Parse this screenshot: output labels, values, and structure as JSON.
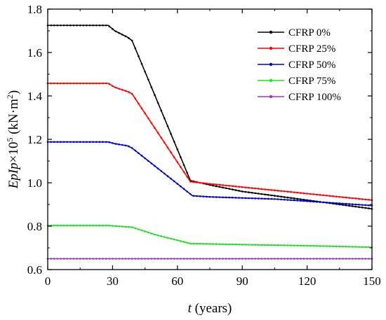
{
  "chart_data": {
    "type": "line",
    "title": "",
    "xlabel": {
      "var": "t",
      "rest": " (years)"
    },
    "ylabel": {
      "var": "EpIp",
      "times": "×10",
      "exp": "5",
      "unit": " (kN·m",
      "unit_exp": "2",
      "close": ")"
    },
    "xlim": [
      0,
      150
    ],
    "ylim": [
      0.6,
      1.8
    ],
    "xticks": [
      0,
      30,
      60,
      90,
      120,
      150
    ],
    "yticks": [
      0.6,
      0.8,
      1.0,
      1.2,
      1.4,
      1.6,
      1.8
    ],
    "xtick_labels": [
      "0",
      "30",
      "60",
      "90",
      "120",
      "150"
    ],
    "ytick_labels": [
      "0.6",
      "0.8",
      "1.0",
      "1.2",
      "1.4",
      "1.6",
      "1.8"
    ],
    "grid": false,
    "legend_position": "top-right",
    "series": [
      {
        "name": "CFRP 0%",
        "color": "#000000",
        "x": [
          0,
          28,
          31,
          34,
          37,
          39,
          66,
          75,
          90,
          105,
          120,
          135,
          150
        ],
        "y": [
          1.725,
          1.725,
          1.7,
          1.685,
          1.67,
          1.655,
          1.01,
          0.99,
          0.96,
          0.94,
          0.92,
          0.9,
          0.88
        ]
      },
      {
        "name": "CFRP 25%",
        "color": "#ff0000",
        "x": [
          0,
          28,
          31,
          34,
          37,
          39,
          66,
          75,
          90,
          105,
          120,
          135,
          150
        ],
        "y": [
          1.458,
          1.458,
          1.44,
          1.43,
          1.42,
          1.41,
          1.005,
          0.995,
          0.98,
          0.965,
          0.95,
          0.935,
          0.92
        ]
      },
      {
        "name": "CFRP 50%",
        "color": "#0000cc",
        "x": [
          0,
          28,
          31,
          34,
          37,
          39,
          67,
          75,
          90,
          105,
          120,
          135,
          150
        ],
        "y": [
          1.188,
          1.188,
          1.18,
          1.175,
          1.17,
          1.16,
          0.94,
          0.935,
          0.93,
          0.925,
          0.915,
          0.905,
          0.895
        ]
      },
      {
        "name": "CFRP 75%",
        "color": "#22dd22",
        "x": [
          0,
          28,
          39,
          50,
          60,
          66,
          90,
          120,
          150
        ],
        "y": [
          0.803,
          0.803,
          0.795,
          0.76,
          0.735,
          0.72,
          0.715,
          0.71,
          0.703
        ]
      },
      {
        "name": "CFRP 100%",
        "color": "#9933cc",
        "x": [
          0,
          150
        ],
        "y": [
          0.65,
          0.65
        ]
      }
    ]
  }
}
